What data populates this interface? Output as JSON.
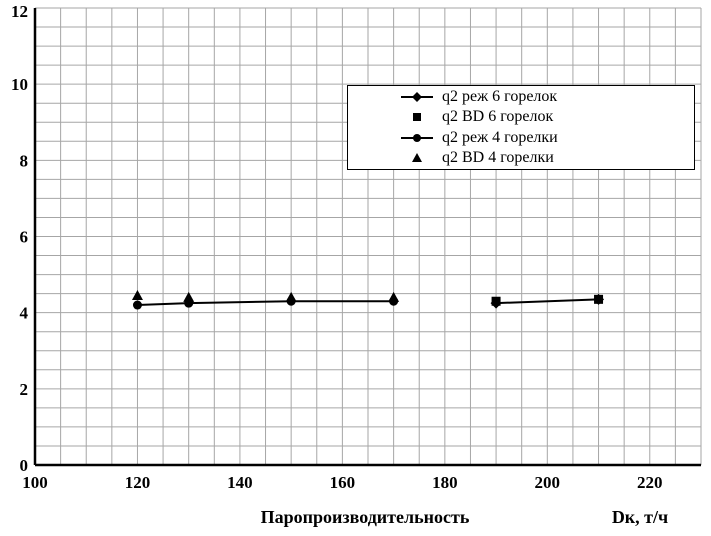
{
  "chart_data": {
    "type": "line",
    "title": "",
    "xlabel": "Паропроизводительность",
    "xunit_label": "Dк, т/ч",
    "xlim": [
      100,
      230
    ],
    "ylim": [
      0,
      12
    ],
    "x_major_ticks": [
      100,
      120,
      140,
      160,
      180,
      200,
      220
    ],
    "y_major_ticks": [
      0,
      2,
      4,
      6,
      8,
      10,
      12
    ],
    "x_minor_step": 5,
    "y_minor_step": 0.5,
    "grid": true,
    "legend_position": "inside-top-right",
    "series": [
      {
        "name": "q2 реж 6 горелок",
        "marker": "diamond",
        "line": true,
        "x": [
          190,
          210
        ],
        "y": [
          4.25,
          4.35
        ]
      },
      {
        "name": "q2 BD 6 горелок",
        "marker": "square",
        "line": false,
        "x": [
          190,
          210
        ],
        "y": [
          4.3,
          4.35
        ]
      },
      {
        "name": "q2 реж 4 горелки",
        "marker": "circle",
        "line": true,
        "x": [
          120,
          130,
          150,
          170
        ],
        "y": [
          4.2,
          4.25,
          4.3,
          4.3
        ]
      },
      {
        "name": "q2 BD 4 горелки",
        "marker": "triangle",
        "line": false,
        "x": [
          120,
          130,
          150,
          170
        ],
        "y": [
          4.45,
          4.4,
          4.4,
          4.4
        ]
      }
    ],
    "colors": {
      "series": "#000000",
      "grid": "#a6a6a6",
      "axis": "#000000",
      "background": "#ffffff",
      "text": "#000000"
    }
  }
}
